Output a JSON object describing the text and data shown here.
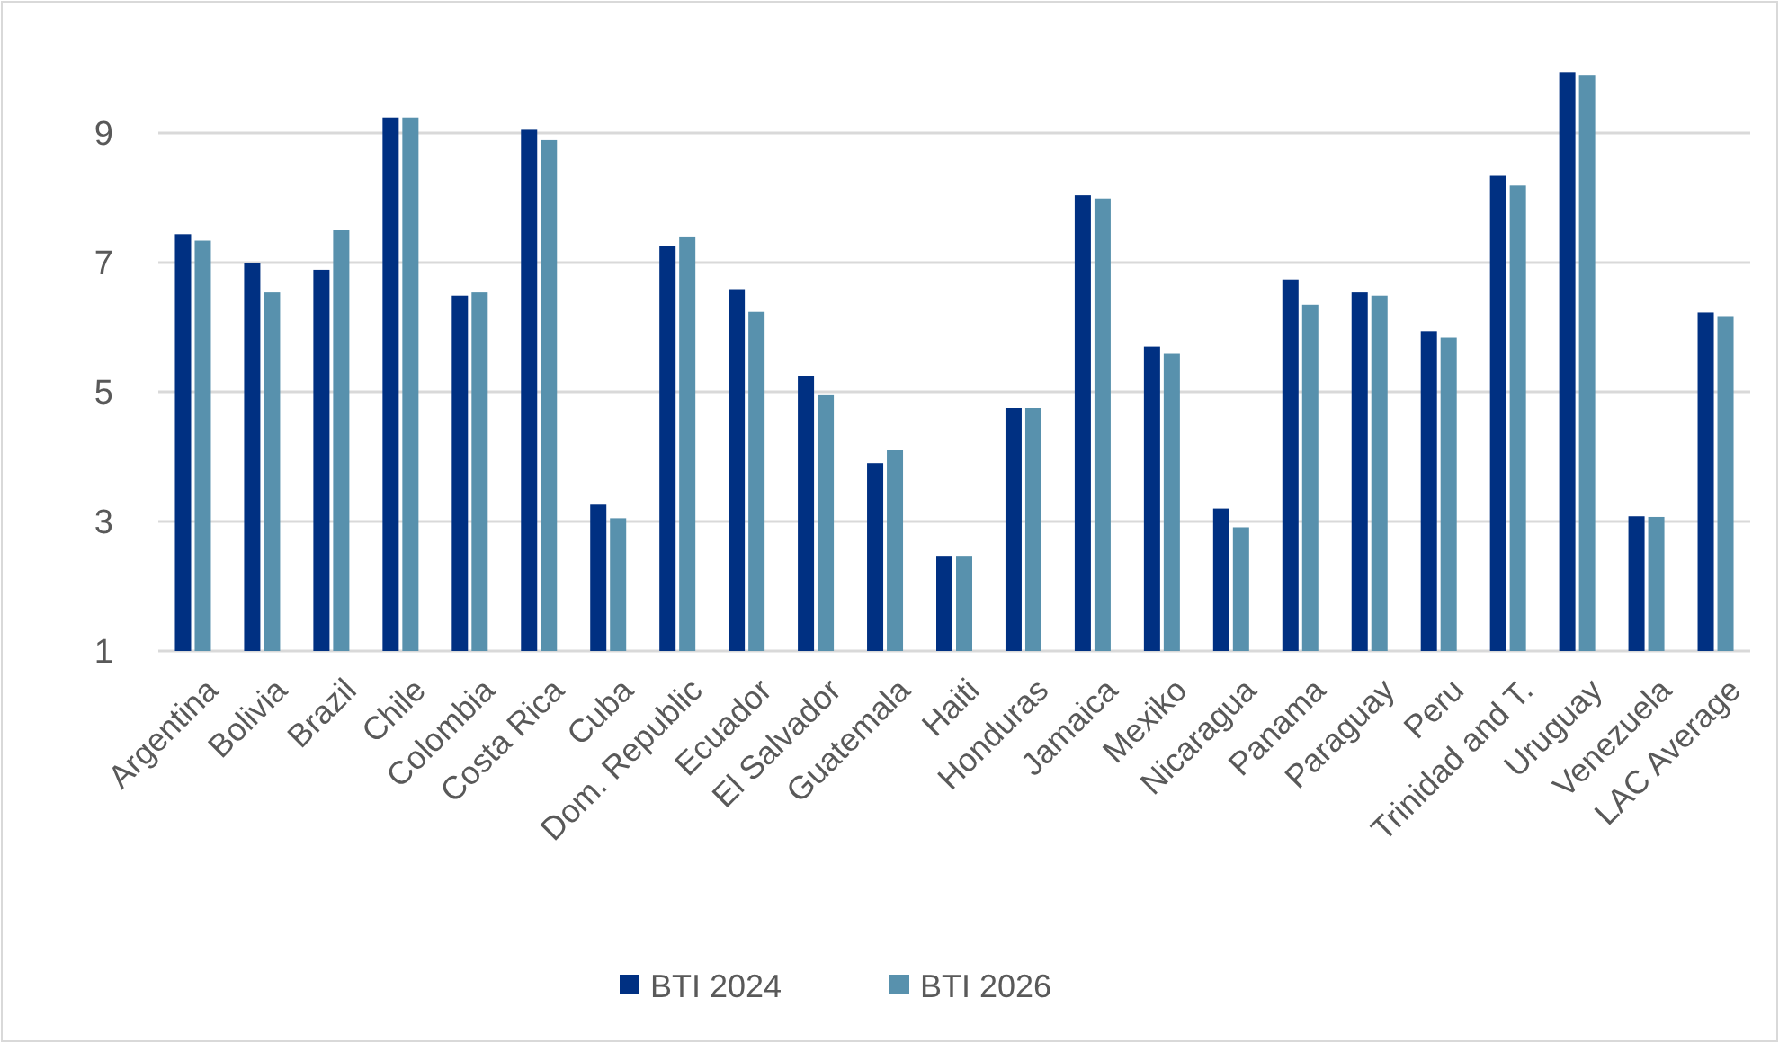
{
  "chart_data": {
    "type": "bar",
    "categories": [
      "Argentina",
      "Bolivia",
      "Brazil",
      "Chile",
      "Colombia",
      "Costa Rica",
      "Cuba",
      "Dom. Republic",
      "Ecuador",
      "El Salvador",
      "Guatemala",
      "Haiti",
      "Honduras",
      "Jamaica",
      "Mexiko",
      "Nicaragua",
      "Panama",
      "Paraguay",
      "Peru",
      "Trinidad and T.",
      "Uruguay",
      "Venezuela",
      "LAC Average"
    ],
    "series": [
      {
        "name": "BTI 2024",
        "color": "#003082",
        "values": [
          7.44,
          7.0,
          6.89,
          9.24,
          6.49,
          9.05,
          3.26,
          7.25,
          6.59,
          5.25,
          3.9,
          2.47,
          4.75,
          8.04,
          5.7,
          3.2,
          6.74,
          6.54,
          5.94,
          8.34,
          9.94,
          3.08,
          6.23
        ]
      },
      {
        "name": "BTI 2026",
        "color": "#5891ad",
        "values": [
          7.34,
          6.54,
          7.5,
          9.24,
          6.54,
          8.89,
          3.05,
          7.39,
          6.24,
          4.96,
          4.1,
          2.47,
          4.75,
          7.99,
          5.59,
          2.91,
          6.35,
          6.49,
          5.84,
          8.19,
          9.9,
          3.07,
          6.16
        ]
      }
    ],
    "ylim": [
      1,
      10
    ],
    "yticks": [
      1,
      3,
      5,
      7,
      9
    ],
    "grid": "y",
    "legend": "bottom"
  }
}
